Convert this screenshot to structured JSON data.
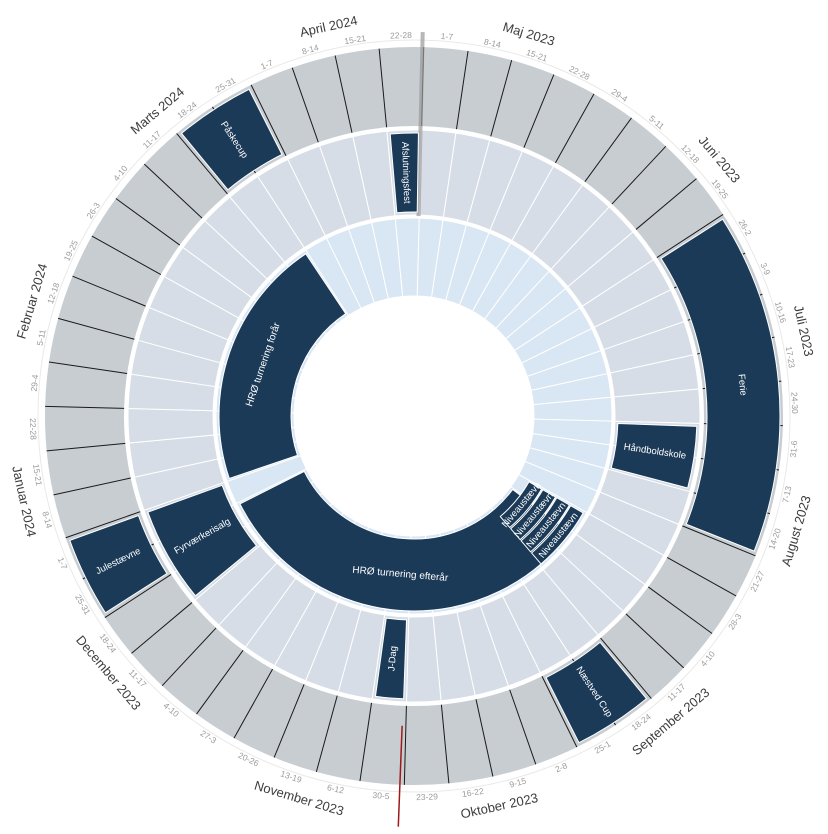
{
  "colors": {
    "outer_ring": "#c8cdd2",
    "middle_ring": "#d6dde6",
    "inner_ring": "#d9e6f3",
    "event": "#1b3a57",
    "event_stroke": "#ffffff",
    "week_divider": "#1a1a1a",
    "marker": "#a01818"
  },
  "months": [
    {
      "label": "Maj 2023",
      "start_week": 0
    },
    {
      "label": "Juni 2023",
      "start_week": 5
    },
    {
      "label": "Juli 2023",
      "start_week": 9
    },
    {
      "label": "August 2023",
      "start_week": 13
    },
    {
      "label": "September 2023",
      "start_week": 18
    },
    {
      "label": "Oktober 2023",
      "start_week": 22
    },
    {
      "label": "November 2023",
      "start_week": 26
    },
    {
      "label": "December 2023",
      "start_week": 31
    },
    {
      "label": "Januar 2024",
      "start_week": 35
    },
    {
      "label": "Februar 2024",
      "start_week": 39
    },
    {
      "label": "Marts 2024",
      "start_week": 44
    },
    {
      "label": "April 2024",
      "start_week": 48
    }
  ],
  "weeks": [
    "1-7",
    "8-14",
    "15-21",
    "22-28",
    "29-4",
    "5-11",
    "12-18",
    "19-25",
    "26-2",
    "3-9",
    "10-16",
    "17-23",
    "24-30",
    "31-6",
    "7-13",
    "14-20",
    "21-27",
    "28-3",
    "4-10",
    "11-17",
    "18-24",
    "25-1",
    "2-8",
    "9-15",
    "16-22",
    "23-29",
    "30-5",
    "6-12",
    "13-19",
    "20-26",
    "27-3",
    "4-10",
    "11-17",
    "18-24",
    "25-31",
    "1-7",
    "8-14",
    "15-21",
    "22-28",
    "29-4",
    "5-11",
    "12-18",
    "19-25",
    "26-3",
    "4-10",
    "11-17",
    "18-24",
    "25-31",
    "1-7",
    "8-14",
    "15-21",
    "22-28"
  ],
  "events": [
    {
      "label": "Ferie",
      "ring": "outer",
      "start": 8,
      "end": 15
    },
    {
      "label": "Håndboldskole",
      "ring": "middle",
      "start": 13,
      "end": 14
    },
    {
      "label": "Næstved Cup",
      "ring": "outer",
      "start": 20,
      "end": 21
    },
    {
      "label": "J-Dag",
      "ring": "middle",
      "start": 26,
      "end": 26
    },
    {
      "label": "Julestævne",
      "ring": "outer",
      "start": 34,
      "end": 35
    },
    {
      "label": "Fyrværkerisalg",
      "ring": "middle",
      "start": 33,
      "end": 35
    },
    {
      "label": "Påskecup",
      "ring": "outer",
      "start": 46,
      "end": 47
    },
    {
      "label": "Afslutningsfest",
      "ring": "middle",
      "start": 51,
      "end": 51
    },
    {
      "label": "HRØ turnering efterår",
      "ring": "inner",
      "start": 18,
      "end": 34
    },
    {
      "label": "HRØ turnering forår",
      "ring": "inner",
      "start": 36,
      "end": 46
    },
    {
      "label": "Niveaustævn",
      "ring": "inner_stack",
      "start": 17,
      "end": 19,
      "layer": 0
    },
    {
      "label": "Niveaustævn",
      "ring": "inner_stack",
      "start": 17,
      "end": 19,
      "layer": 1
    },
    {
      "label": "Niveaustævn",
      "ring": "inner_stack",
      "start": 17,
      "end": 19,
      "layer": 2
    },
    {
      "label": "Niveaustævn",
      "ring": "inner_stack",
      "start": 17,
      "end": 19,
      "layer": 3
    }
  ],
  "today_marker_week": 26.1
}
